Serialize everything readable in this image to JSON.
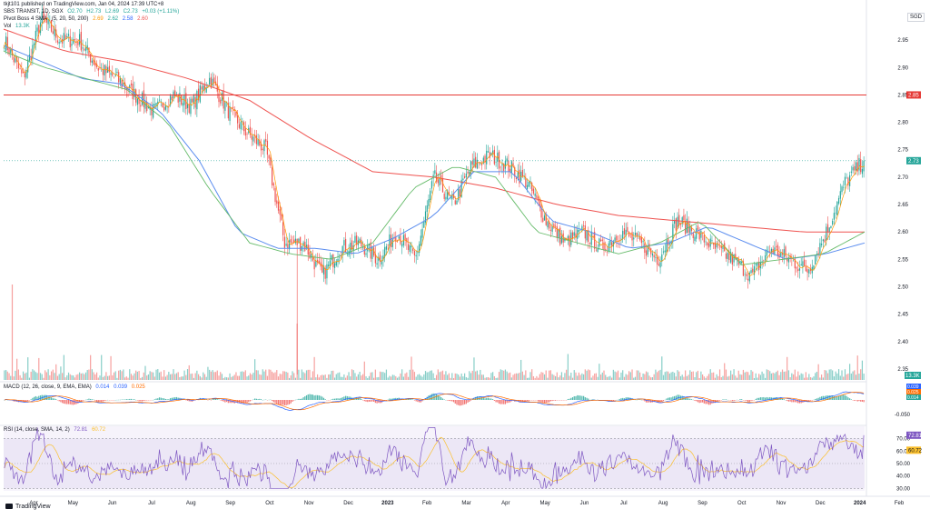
{
  "header": {
    "publisher": "tkjt101 published on TradingView.com, Jan 04, 2024 17:39 UTC+8",
    "symbol": "SBS TRANSIT, 1D, SGX",
    "o": "O2.70",
    "h": "H2.73",
    "l": "L2.69",
    "c": "C2.73",
    "chg": "+0.03 (+1.11%)",
    "pivot_label": "Pivot Boss 4 SMA",
    "pivot_params": "(5, 20, 50, 200)",
    "pivot_vals": [
      "2.69",
      "2.62",
      "2.58",
      "2.60"
    ],
    "vol_label": "Vol",
    "vol_val": "13.3K",
    "macd_label": "MACD (12, 26, close, 9, EMA, EMA)",
    "macd_vals": [
      "0.014",
      "0.039",
      "0.025"
    ],
    "rsi_label": "RSI (14, close, SMA, 14, 2)",
    "rsi_vals": [
      "72.81",
      "60.72"
    ],
    "currency": "SGD"
  },
  "footer": {
    "brand": "TradingView"
  },
  "colors": {
    "up": "#26a69a",
    "down": "#ef5350",
    "sma5": "#ff9800",
    "sma20": "#66bb6a",
    "sma50": "#5b8def",
    "sma200": "#ef5350",
    "rsi": "#7e57c2",
    "rsi_ma": "#fbc02d",
    "hline": "#e53935"
  },
  "chart_data": [
    {
      "type": "candlestick",
      "name": "price",
      "x_ticks": [
        "Apr",
        "May",
        "Jun",
        "Jul",
        "Aug",
        "Sep",
        "Oct",
        "Nov",
        "Dec",
        "2023",
        "Feb",
        "Mar",
        "Apr",
        "May",
        "Jun",
        "Jul",
        "Aug",
        "Sep",
        "Oct",
        "Nov",
        "Dec",
        "2024",
        "Feb"
      ],
      "y_ticks": [
        2.35,
        2.4,
        2.45,
        2.5,
        2.55,
        2.6,
        2.65,
        2.7,
        2.75,
        2.8,
        2.85,
        2.9,
        2.95
      ],
      "ylim": [
        2.33,
        3.0
      ],
      "horizontal_line": {
        "value": 2.85,
        "label": "2.85"
      },
      "last_price": {
        "value": 2.73,
        "label": "2.73"
      },
      "close_anchors": [
        2.95,
        2.88,
        2.99,
        2.95,
        2.95,
        2.9,
        2.88,
        2.85,
        2.82,
        2.85,
        2.83,
        2.88,
        2.82,
        2.78,
        2.75,
        2.58,
        2.58,
        2.52,
        2.57,
        2.58,
        2.55,
        2.6,
        2.55,
        2.7,
        2.65,
        2.72,
        2.74,
        2.72,
        2.69,
        2.62,
        2.58,
        2.6,
        2.57,
        2.6,
        2.58,
        2.55,
        2.62,
        2.6,
        2.57,
        2.55,
        2.52,
        2.57,
        2.55,
        2.53,
        2.6,
        2.69,
        2.73
      ],
      "sma200_anchors": [
        2.97,
        2.93,
        2.91,
        2.88,
        2.84,
        2.77,
        2.71,
        2.7,
        2.68,
        2.65,
        2.63,
        2.62,
        2.61,
        2.6,
        2.6
      ],
      "sma50_anchors": [
        2.94,
        2.91,
        2.88,
        2.87,
        2.82,
        2.73,
        2.6,
        2.57,
        2.57,
        2.56,
        2.59,
        2.63,
        2.71,
        2.71,
        2.62,
        2.6,
        2.57,
        2.58,
        2.61,
        2.58,
        2.55,
        2.56,
        2.58
      ],
      "sma20_anchors": [
        2.93,
        2.9,
        2.88,
        2.86,
        2.8,
        2.68,
        2.58,
        2.56,
        2.55,
        2.58,
        2.68,
        2.72,
        2.7,
        2.6,
        2.58,
        2.56,
        2.58,
        2.62,
        2.54,
        2.55,
        2.56,
        2.6
      ],
      "labels": {
        "last": "2.73",
        "hline": "2.85",
        "vol": "13.3K"
      }
    },
    {
      "type": "bar",
      "name": "volume",
      "spike_indices": [
        5,
        8,
        15,
        22,
        33,
        36,
        38,
        55,
        62,
        68,
        90,
        118,
        130,
        160,
        198,
        230,
        260,
        300,
        330,
        360,
        380,
        420,
        460,
        500,
        520,
        540,
        545,
        548
      ]
    },
    {
      "type": "line",
      "name": "macd",
      "y_ticks": [
        -0.05
      ],
      "y_tick_labels": [
        "-0.050"
      ],
      "value_labels": [
        "0.039",
        "0.025",
        "0.014"
      ]
    },
    {
      "type": "line",
      "name": "rsi",
      "y_ticks": [
        30,
        40,
        50,
        60,
        70
      ],
      "y_tick_labels": [
        "30.00",
        "40.00",
        "50.00",
        "60.00",
        "70.00"
      ],
      "bands": [
        30,
        70
      ],
      "value_labels": [
        "72.81",
        "60.72"
      ]
    }
  ]
}
